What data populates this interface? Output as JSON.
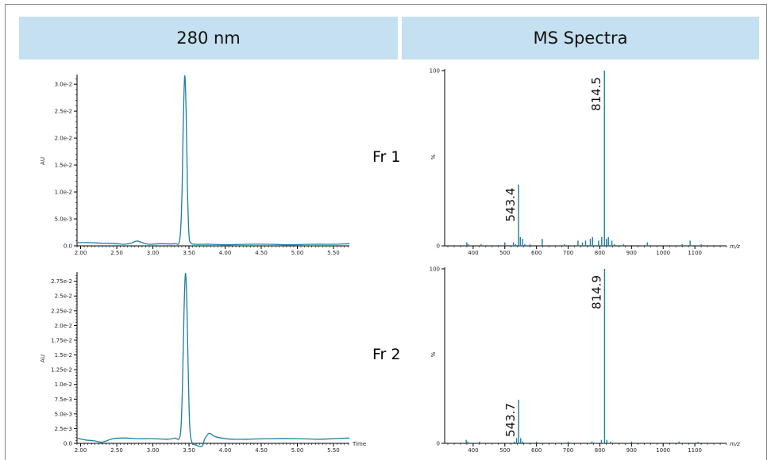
{
  "headers": {
    "left": "280 nm",
    "right": "MS Spectra"
  },
  "fractions": [
    "Fr 1",
    "Fr 2"
  ],
  "colors": {
    "trace": "#1a7fa0",
    "header_bg": "#c5e0f0",
    "axis": "#000000"
  },
  "chart_data": [
    {
      "id": "uv1",
      "type": "line",
      "title": "",
      "xlabel": "",
      "ylabel": "AU",
      "xlim": [
        1.95,
        5.72
      ],
      "ylim": [
        0,
        0.0315
      ],
      "x_ticks": [
        2.0,
        2.5,
        3.0,
        3.5,
        4.0,
        4.5,
        5.0,
        5.5
      ],
      "x_tick_labels": [
        "2.00",
        "2.50",
        "3.00",
        "3.50",
        "4.00",
        "4.50",
        "5.00",
        "5.50"
      ],
      "y_ticks": [
        0,
        0.005,
        0.01,
        0.015,
        0.02,
        0.025,
        0.03
      ],
      "y_tick_labels": [
        "0.0",
        "5.0e-3",
        "1.0e-2",
        "1.5e-2",
        "2.0e-2",
        "2.5e-2",
        "3.0e-2"
      ],
      "series": [
        {
          "x": [
            1.95,
            2.1,
            2.3,
            2.5,
            2.6,
            2.7,
            2.78,
            2.85,
            2.95,
            3.1,
            3.3,
            3.37,
            3.4,
            3.42,
            3.44,
            3.46,
            3.48,
            3.5,
            3.53,
            3.6,
            3.8,
            4.0,
            4.3,
            4.6,
            4.9,
            5.2,
            5.5,
            5.72
          ],
          "y": [
            0.0006,
            0.0006,
            0.0005,
            0.0004,
            0.0003,
            0.0005,
            0.0009,
            0.0006,
            0.0003,
            0.0004,
            0.0004,
            0.001,
            0.008,
            0.022,
            0.0315,
            0.025,
            0.01,
            0.002,
            0.0005,
            0.0003,
            0.0003,
            0.0002,
            0.0003,
            0.0003,
            0.0002,
            0.0003,
            0.0003,
            0.0004
          ]
        }
      ]
    },
    {
      "id": "uv2",
      "type": "line",
      "title": "",
      "xlabel": "Time",
      "ylabel": "AU",
      "xlim": [
        1.95,
        5.72
      ],
      "ylim": [
        0,
        0.0288
      ],
      "x_ticks": [
        2.0,
        2.5,
        3.0,
        3.5,
        4.0,
        4.5,
        5.0,
        5.5
      ],
      "x_tick_labels": [
        "2.00",
        "2.50",
        "3.00",
        "3.50",
        "4.00",
        "4.50",
        "5.00",
        "5.50"
      ],
      "y_ticks": [
        0,
        0.0025,
        0.005,
        0.0075,
        0.01,
        0.0125,
        0.015,
        0.0175,
        0.02,
        0.0225,
        0.025,
        0.0275
      ],
      "y_tick_labels": [
        "0.0",
        "2.5e-3",
        "5.0e-3",
        "7.5e-3",
        "1.0e-2",
        "1.25e-2",
        "1.5e-2",
        "1.75e-2",
        "2.0e-2",
        "2.25e-2",
        "2.5e-2",
        "2.75e-2"
      ],
      "series": [
        {
          "x": [
            1.95,
            2.05,
            2.2,
            2.3,
            2.45,
            2.6,
            2.8,
            3.0,
            3.2,
            3.3,
            3.38,
            3.41,
            3.43,
            3.45,
            3.47,
            3.49,
            3.51,
            3.54,
            3.6,
            3.68,
            3.72,
            3.78,
            3.85,
            3.95,
            4.1,
            4.3,
            4.6,
            5.0,
            5.3,
            5.5,
            5.72
          ],
          "y": [
            0.0009,
            0.0006,
            0.0004,
            0.0002,
            0.0008,
            0.0009,
            0.0008,
            0.0008,
            0.0007,
            0.0009,
            0.0015,
            0.01,
            0.022,
            0.0288,
            0.024,
            0.012,
            0.003,
            0.0002,
            -0.0003,
            -0.0005,
            0.0008,
            0.0017,
            0.0012,
            0.0009,
            0.0007,
            0.0007,
            0.0008,
            0.0008,
            0.0007,
            0.0008,
            0.0009
          ]
        }
      ]
    },
    {
      "id": "ms1",
      "type": "bar",
      "title": "",
      "xlabel": "m/z",
      "ylabel": "%",
      "xlim": [
        310,
        1200
      ],
      "ylim": [
        0,
        100
      ],
      "x_ticks": [
        400,
        500,
        600,
        700,
        800,
        900,
        1000,
        1100
      ],
      "x_tick_labels": [
        "400",
        "500",
        "600",
        "700",
        "800",
        "900",
        "1000",
        "1100"
      ],
      "y_ticks": [
        0,
        100
      ],
      "y_tick_labels": [
        "0",
        "100"
      ],
      "peaks": [
        {
          "mz": 380,
          "v": 2
        },
        {
          "mz": 385,
          "v": 1
        },
        {
          "mz": 425,
          "v": 1
        },
        {
          "mz": 500,
          "v": 2
        },
        {
          "mz": 527,
          "v": 2
        },
        {
          "mz": 534,
          "v": 1
        },
        {
          "mz": 543.4,
          "v": 35
        },
        {
          "mz": 549,
          "v": 5
        },
        {
          "mz": 556,
          "v": 4
        },
        {
          "mz": 563,
          "v": 1
        },
        {
          "mz": 580,
          "v": 1
        },
        {
          "mz": 618,
          "v": 4
        },
        {
          "mz": 688,
          "v": 1
        },
        {
          "mz": 731,
          "v": 3
        },
        {
          "mz": 745,
          "v": 2
        },
        {
          "mz": 755,
          "v": 3
        },
        {
          "mz": 770,
          "v": 4
        },
        {
          "mz": 777,
          "v": 5
        },
        {
          "mz": 796,
          "v": 3
        },
        {
          "mz": 806,
          "v": 5
        },
        {
          "mz": 814.5,
          "v": 100
        },
        {
          "mz": 821,
          "v": 4
        },
        {
          "mz": 827,
          "v": 5
        },
        {
          "mz": 838,
          "v": 3
        },
        {
          "mz": 846,
          "v": 1
        },
        {
          "mz": 875,
          "v": 1
        },
        {
          "mz": 950,
          "v": 2
        },
        {
          "mz": 1060,
          "v": 1
        },
        {
          "mz": 1085,
          "v": 3
        },
        {
          "mz": 1120,
          "v": 1
        }
      ],
      "labels": [
        {
          "mz": 543.4,
          "text": "543.4"
        },
        {
          "mz": 814.5,
          "text": "814.5"
        }
      ]
    },
    {
      "id": "ms2",
      "type": "bar",
      "title": "",
      "xlabel": "m/z",
      "ylabel": "%",
      "xlim": [
        310,
        1200
      ],
      "ylim": [
        0,
        100
      ],
      "x_ticks": [
        400,
        500,
        600,
        700,
        800,
        900,
        1000,
        1100
      ],
      "x_tick_labels": [
        "400",
        "500",
        "600",
        "700",
        "800",
        "900",
        "1000",
        "1100"
      ],
      "y_ticks": [
        0,
        100
      ],
      "y_tick_labels": [
        "0",
        "100"
      ],
      "peaks": [
        {
          "mz": 378,
          "v": 2
        },
        {
          "mz": 383,
          "v": 1
        },
        {
          "mz": 420,
          "v": 1
        },
        {
          "mz": 530,
          "v": 1
        },
        {
          "mz": 537,
          "v": 3
        },
        {
          "mz": 543.7,
          "v": 25
        },
        {
          "mz": 550,
          "v": 3
        },
        {
          "mz": 556,
          "v": 1
        },
        {
          "mz": 600,
          "v": 1
        },
        {
          "mz": 700,
          "v": 1
        },
        {
          "mz": 775,
          "v": 1
        },
        {
          "mz": 805,
          "v": 2
        },
        {
          "mz": 814.9,
          "v": 100
        },
        {
          "mz": 822,
          "v": 2
        },
        {
          "mz": 834,
          "v": 1
        },
        {
          "mz": 900,
          "v": 1
        },
        {
          "mz": 1050,
          "v": 1
        },
        {
          "mz": 1110,
          "v": 1
        }
      ],
      "labels": [
        {
          "mz": 543.7,
          "text": "543.7"
        },
        {
          "mz": 814.9,
          "text": "814.9"
        }
      ]
    }
  ]
}
